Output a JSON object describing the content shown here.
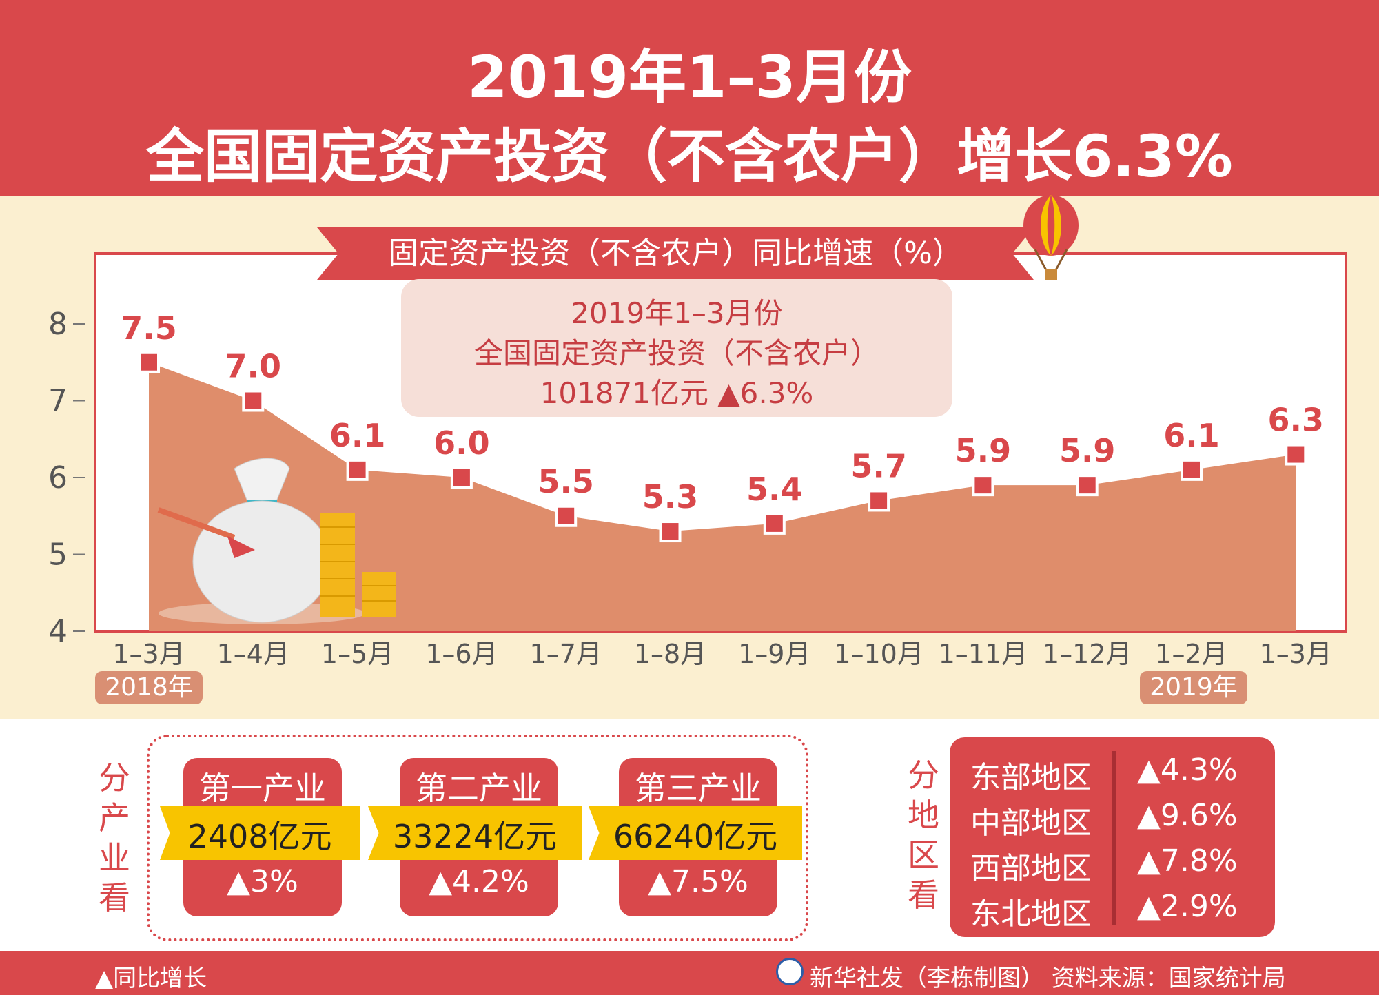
{
  "header": {
    "title_line1": "2019年1–3月份",
    "title_line2": "全国固定资产投资（不含农户）增长6.3%"
  },
  "chart_data": {
    "type": "area",
    "title": "固定资产投资（不含农户）同比增速（%）",
    "categories": [
      "1–3月",
      "1–4月",
      "1–5月",
      "1–6月",
      "1–7月",
      "1–8月",
      "1–9月",
      "1–10月",
      "1–11月",
      "1–12月",
      "1–2月",
      "1–3月"
    ],
    "values": [
      7.5,
      7.0,
      6.1,
      6.0,
      5.5,
      5.3,
      5.4,
      5.7,
      5.9,
      5.9,
      6.1,
      6.3
    ],
    "value_labels": [
      "7.5",
      "7.0",
      "6.1",
      "6.0",
      "5.5",
      "5.3",
      "5.4",
      "5.7",
      "5.9",
      "5.9",
      "6.1",
      "6.3"
    ],
    "y_ticks": [
      "4",
      "5",
      "6",
      "7",
      "8"
    ],
    "ylim": [
      4,
      8.5
    ],
    "year_tags": [
      "2018年",
      "2019年"
    ],
    "colors": {
      "area": "#df8d6b",
      "marker": "#d9484b",
      "label": "#d9484b"
    }
  },
  "callout": {
    "line1": "2019年1–3月份",
    "line2": "全国固定资产投资（不含农户）",
    "line3": "101871亿元 ▲6.3%"
  },
  "industries": {
    "label": "分产业看",
    "items": [
      {
        "name": "第一产业",
        "value": "2408亿元",
        "growth": "▲3%"
      },
      {
        "name": "第二产业",
        "value": "33224亿元",
        "growth": "▲4.2%"
      },
      {
        "name": "第三产业",
        "value": "66240亿元",
        "growth": "▲7.5%"
      }
    ]
  },
  "regions": {
    "label": "分地区看",
    "items": [
      {
        "name": "东部地区",
        "growth": "▲4.3%"
      },
      {
        "name": "中部地区",
        "growth": "▲9.6%"
      },
      {
        "name": "西部地区",
        "growth": "▲7.8%"
      },
      {
        "name": "东北地区",
        "growth": "▲2.9%"
      }
    ]
  },
  "footer": {
    "legend": "▲同比增长",
    "source": "新华社发（李栋制图） 资料来源：国家统计局"
  },
  "theme": {
    "primary": "#d9484b",
    "cream": "#fbefd0",
    "gold": "#f8c400"
  }
}
